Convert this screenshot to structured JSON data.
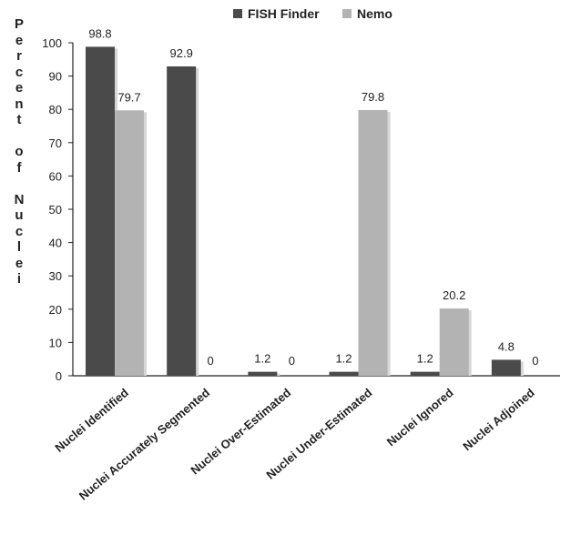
{
  "chart_data": {
    "type": "bar",
    "title": "",
    "xlabel": "",
    "ylabel": "Percent of Nuclei",
    "ylim": [
      0,
      100
    ],
    "yticks": [
      0,
      10,
      20,
      30,
      40,
      50,
      60,
      70,
      80,
      90,
      100
    ],
    "categories": [
      "Nuclei Identified",
      "Nuclei Accurately  Segmented",
      "Nuclei Over-Estimated",
      "Nuclei Under-Estimated",
      "Nuclei Ignored",
      "Nuclei Adjoined"
    ],
    "series": [
      {
        "name": "FISH Finder",
        "color": "#4a4a4a",
        "values": [
          98.8,
          92.9,
          1.2,
          1.2,
          1.2,
          4.8
        ]
      },
      {
        "name": "Nemo",
        "color": "#b3b3b3",
        "values": [
          79.7,
          0,
          0,
          79.8,
          20.2,
          0
        ]
      }
    ],
    "value_labels": [
      [
        "98.8",
        "92.9",
        "1.2",
        "1.2",
        "1.2",
        "4.8"
      ],
      [
        "79.7",
        "0",
        "0",
        "79.8",
        "20.2",
        "0"
      ]
    ],
    "legend_position": "top-center",
    "grid": false
  }
}
